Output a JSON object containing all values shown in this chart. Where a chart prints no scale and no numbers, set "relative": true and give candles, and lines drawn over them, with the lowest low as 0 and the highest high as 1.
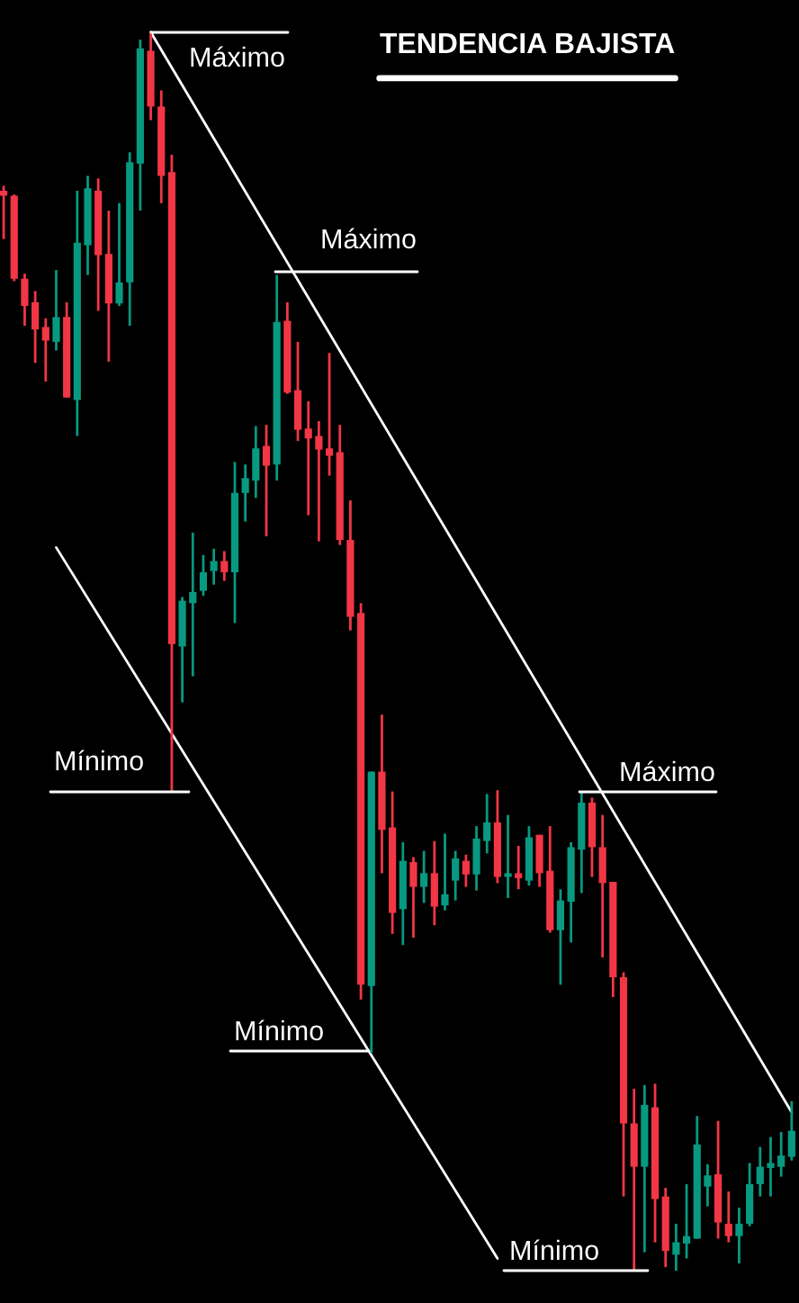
{
  "chart_data": {
    "type": "candlestick",
    "relative": true,
    "title": "TENDENCIA BAJISTA",
    "categories": [
      null,
      null,
      null,
      null,
      null,
      null,
      null,
      null,
      null,
      null,
      null,
      null,
      null,
      null,
      null,
      null,
      null,
      null,
      null,
      null,
      null,
      null,
      null,
      null,
      null,
      null,
      null,
      null,
      null,
      null,
      null,
      null,
      null,
      null,
      null,
      null,
      null,
      null,
      null,
      null,
      null,
      null,
      null,
      null,
      null,
      null,
      null,
      null,
      null,
      null,
      null,
      null,
      null,
      null,
      null,
      null,
      null,
      null,
      null,
      null,
      null,
      null,
      null,
      null,
      null,
      null,
      null,
      null,
      null,
      null,
      null,
      null,
      null,
      null,
      null,
      null
    ],
    "ohlc": [
      [
        0.872,
        0.876,
        0.833,
        0.868
      ],
      [
        0.868,
        0.869,
        0.799,
        0.801
      ],
      [
        0.801,
        0.805,
        0.763,
        0.779
      ],
      [
        0.782,
        0.791,
        0.733,
        0.76
      ],
      [
        0.762,
        0.769,
        0.718,
        0.751
      ],
      [
        0.75,
        0.808,
        0.743,
        0.77
      ],
      [
        0.77,
        0.782,
        0.705,
        0.705
      ],
      [
        0.703,
        0.872,
        0.674,
        0.83
      ],
      [
        0.828,
        0.884,
        0.804,
        0.874
      ],
      [
        0.872,
        0.882,
        0.775,
        0.82
      ],
      [
        0.821,
        0.856,
        0.734,
        0.781
      ],
      [
        0.781,
        0.862,
        0.779,
        0.798
      ],
      [
        0.798,
        0.903,
        0.763,
        0.895
      ],
      [
        0.894,
        0.994,
        0.856,
        0.987
      ],
      [
        0.985,
        1.0,
        0.929,
        0.94
      ],
      [
        0.94,
        0.953,
        0.862,
        0.884
      ],
      [
        0.887,
        0.901,
        0.387,
        0.506
      ],
      [
        0.504,
        0.544,
        0.459,
        0.541
      ],
      [
        0.539,
        0.596,
        0.48,
        0.548
      ],
      [
        0.549,
        0.578,
        0.545,
        0.564
      ],
      [
        0.565,
        0.583,
        0.554,
        0.573
      ],
      [
        0.573,
        0.581,
        0.557,
        0.564
      ],
      [
        0.564,
        0.653,
        0.523,
        0.628
      ],
      [
        0.628,
        0.651,
        0.605,
        0.64
      ],
      [
        0.638,
        0.682,
        0.624,
        0.664
      ],
      [
        0.666,
        0.683,
        0.593,
        0.65
      ],
      [
        0.651,
        0.804,
        0.638,
        0.766
      ],
      [
        0.767,
        0.782,
        0.708,
        0.709
      ],
      [
        0.711,
        0.75,
        0.67,
        0.679
      ],
      [
        0.68,
        0.702,
        0.61,
        0.672
      ],
      [
        0.674,
        0.686,
        0.589,
        0.663
      ],
      [
        0.664,
        0.741,
        0.642,
        0.658
      ],
      [
        0.661,
        0.683,
        0.586,
        0.59
      ],
      [
        0.59,
        0.622,
        0.517,
        0.528
      ],
      [
        0.531,
        0.539,
        0.219,
        0.231
      ],
      [
        0.23,
        0.403,
        0.176,
        0.403
      ],
      [
        0.403,
        0.449,
        0.321,
        0.356
      ],
      [
        0.358,
        0.387,
        0.272,
        0.289
      ],
      [
        0.292,
        0.346,
        0.263,
        0.331
      ],
      [
        0.33,
        0.334,
        0.269,
        0.31
      ],
      [
        0.31,
        0.339,
        0.297,
        0.321
      ],
      [
        0.321,
        0.347,
        0.279,
        0.294
      ],
      [
        0.295,
        0.353,
        0.291,
        0.304
      ],
      [
        0.315,
        0.339,
        0.299,
        0.333
      ],
      [
        0.331,
        0.336,
        0.31,
        0.32
      ],
      [
        0.32,
        0.359,
        0.307,
        0.349
      ],
      [
        0.347,
        0.385,
        0.337,
        0.362
      ],
      [
        0.362,
        0.388,
        0.313,
        0.318
      ],
      [
        0.318,
        0.368,
        0.301,
        0.321
      ],
      [
        0.321,
        0.343,
        0.308,
        0.317
      ],
      [
        0.315,
        0.359,
        0.311,
        0.35
      ],
      [
        0.352,
        0.352,
        0.31,
        0.321
      ],
      [
        0.323,
        0.359,
        0.273,
        0.275
      ],
      [
        0.275,
        0.308,
        0.231,
        0.299
      ],
      [
        0.298,
        0.346,
        0.265,
        0.342
      ],
      [
        0.34,
        0.387,
        0.305,
        0.378
      ],
      [
        0.378,
        0.382,
        0.318,
        0.342
      ],
      [
        0.342,
        0.368,
        0.253,
        0.313
      ],
      [
        0.314,
        0.314,
        0.221,
        0.237
      ],
      [
        0.237,
        0.241,
        0.06,
        0.119
      ],
      [
        0.119,
        0.147,
        0.0,
        0.084
      ],
      [
        0.084,
        0.15,
        0.015,
        0.134
      ],
      [
        0.132,
        0.151,
        0.023,
        0.058
      ],
      [
        0.06,
        0.067,
        0.003,
        0.016
      ],
      [
        0.013,
        0.038,
        0.0,
        0.023
      ],
      [
        0.022,
        0.07,
        0.01,
        0.028
      ],
      [
        0.026,
        0.125,
        0.026,
        0.102
      ],
      [
        0.068,
        0.086,
        0.052,
        0.077
      ],
      [
        0.078,
        0.121,
        0.026,
        0.039
      ],
      [
        0.038,
        0.064,
        0.023,
        0.028
      ],
      [
        0.028,
        0.051,
        0.006,
        0.038
      ],
      [
        0.038,
        0.087,
        0.036,
        0.07
      ],
      [
        0.07,
        0.1,
        0.06,
        0.084
      ],
      [
        0.083,
        0.108,
        0.06,
        0.087
      ],
      [
        0.084,
        0.112,
        0.076,
        0.093
      ],
      [
        0.092,
        0.137,
        0.089,
        0.113
      ]
    ],
    "colors": [
      "#f23645",
      "#f23645",
      "#f23645",
      "#f23645",
      "#f23645",
      "#089981",
      "#f23645",
      "#089981",
      "#089981",
      "#f23645",
      "#f23645",
      "#089981",
      "#089981",
      "#089981",
      "#f23645",
      "#f23645",
      "#f23645",
      "#089981",
      "#089981",
      "#089981",
      "#089981",
      "#f23645",
      "#089981",
      "#089981",
      "#089981",
      "#f23645",
      "#089981",
      "#f23645",
      "#f23645",
      "#f23645",
      "#f23645",
      "#f23645",
      "#f23645",
      "#f23645",
      "#f23645",
      "#089981",
      "#f23645",
      "#f23645",
      "#089981",
      "#f23645",
      "#089981",
      "#f23645",
      "#089981",
      "#089981",
      "#f23645",
      "#089981",
      "#089981",
      "#f23645",
      "#089981",
      "#f23645",
      "#089981",
      "#f23645",
      "#f23645",
      "#089981",
      "#089981",
      "#089981",
      "#f23645",
      "#f23645",
      "#f23645",
      "#f23645",
      "#f23645",
      "#089981",
      "#f23645",
      "#f23645",
      "#089981",
      "#089981",
      "#089981",
      "#089981",
      "#f23645",
      "#f23645",
      "#089981",
      "#089981",
      "#089981",
      "#089981",
      "#089981",
      "#089981"
    ],
    "series": [
      {
        "type": "line",
        "values": [
          null,
          null,
          null,
          null,
          null,
          null,
          null,
          null,
          null,
          null,
          null,
          null,
          null,
          null,
          1.0,
          null,
          null,
          null,
          null,
          null,
          null,
          null,
          null,
          null,
          null,
          null,
          null,
          null,
          null,
          null,
          null,
          null,
          null,
          null,
          null,
          null,
          null,
          null,
          null,
          null,
          null,
          null,
          null,
          null,
          null,
          null,
          null,
          null,
          null,
          null,
          null,
          null,
          null,
          null,
          null,
          null,
          null,
          null,
          null,
          null,
          null,
          null,
          null,
          null,
          null,
          null,
          null,
          null,
          null,
          null,
          null,
          null,
          null,
          null,
          null,
          0.128
        ],
        "color": "#ffffff"
      },
      {
        "type": "line",
        "values": [
          null,
          null,
          null,
          null,
          null,
          0.584,
          null,
          null,
          null,
          null,
          null,
          null,
          null,
          null,
          null,
          null,
          null,
          null,
          null,
          null,
          null,
          null,
          null,
          null,
          null,
          null,
          null,
          null,
          null,
          null,
          null,
          null,
          null,
          null,
          null,
          null,
          null,
          null,
          null,
          null,
          null,
          null,
          null,
          null,
          null,
          null,
          null,
          0.01,
          null,
          null,
          null,
          null,
          null,
          null,
          null,
          null,
          null,
          null,
          null,
          null,
          null,
          null,
          null,
          null,
          null,
          null,
          null,
          null,
          null,
          null,
          null,
          null,
          null,
          null,
          null,
          null
        ],
        "color": "#ffffff"
      }
    ],
    "annotations": [
      "Máximo",
      "Máximo",
      "Máximo",
      "Mínimo",
      "Mínimo",
      "Mínimo"
    ]
  }
}
